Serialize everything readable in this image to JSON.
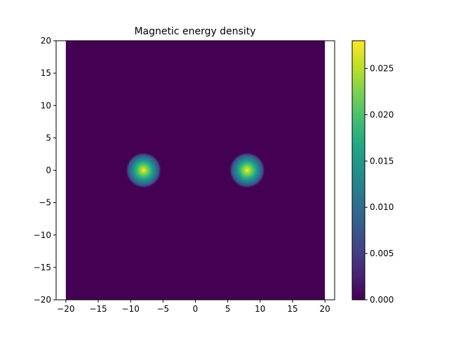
{
  "chart_data": {
    "type": "heatmap",
    "title": "Magnetic energy density",
    "xlabel": "",
    "ylabel": "",
    "xlim": [
      -21.5,
      21.5
    ],
    "ylim": [
      -20,
      20
    ],
    "data_extent": {
      "x": [
        -20,
        20
      ],
      "y": [
        -20,
        20
      ]
    },
    "x_ticks": [
      -20,
      -15,
      -10,
      -5,
      0,
      5,
      10,
      15,
      20
    ],
    "y_ticks": [
      -20,
      -15,
      -10,
      -5,
      0,
      5,
      10,
      15,
      20
    ],
    "x_tick_labels": [
      "−20",
      "−15",
      "−10",
      "−5",
      "0",
      "5",
      "10",
      "15",
      "20"
    ],
    "y_tick_labels": [
      "−20",
      "−15",
      "−10",
      "−5",
      "0",
      "5",
      "10",
      "15",
      "20"
    ],
    "peaks": [
      {
        "x": -8,
        "y": 0,
        "value": 0.028
      },
      {
        "x": 8,
        "y": 0,
        "value": 0.028
      }
    ],
    "grid": false,
    "colormap": "viridis",
    "colorbar": {
      "range": [
        0,
        0.028
      ],
      "ticks": [
        0,
        0.005,
        0.01,
        0.015,
        0.02,
        0.025
      ],
      "tick_labels": [
        "0.000",
        "0.005",
        "0.010",
        "0.015",
        "0.020",
        "0.025"
      ]
    }
  }
}
